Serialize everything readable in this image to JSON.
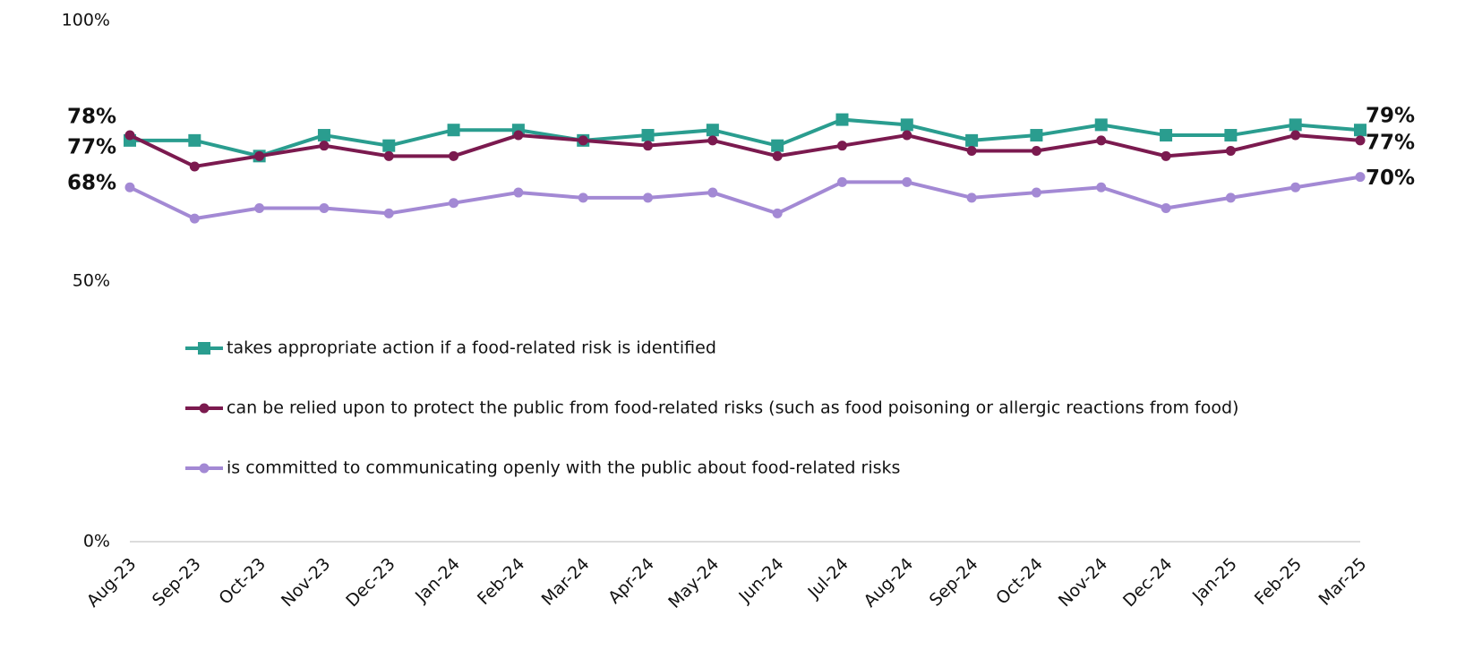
{
  "chart_data": {
    "type": "line",
    "categories": [
      "Aug-23",
      "Sep-23",
      "Oct-23",
      "Nov-23",
      "Dec-23",
      "Jan-24",
      "Feb-24",
      "Mar-24",
      "Apr-24",
      "May-24",
      "Jun-24",
      "Jul-24",
      "Aug-24",
      "Sep-24",
      "Oct-24",
      "Nov-24",
      "Dec-24",
      "Jan-25",
      "Feb-25",
      "Mar-25"
    ],
    "series": [
      {
        "name": "takes appropriate action if a food-related risk is identified",
        "color": "#2a9d8f",
        "marker": "square",
        "values": [
          77,
          77,
          74,
          78,
          76,
          79,
          79,
          77,
          78,
          79,
          76,
          81,
          80,
          77,
          78,
          80,
          78,
          78,
          80,
          79
        ],
        "value_labels": [
          "77%",
          null,
          null,
          null,
          null,
          null,
          null,
          null,
          null,
          null,
          null,
          null,
          null,
          null,
          null,
          null,
          null,
          null,
          null,
          "79%"
        ]
      },
      {
        "name": "can be relied upon to protect the public from food-related risks (such as food poisoning or allergic reactions from food)",
        "color": "#7b1a4f",
        "marker": "circle",
        "values": [
          78,
          72,
          74,
          76,
          74,
          74,
          78,
          77,
          76,
          77,
          74,
          76,
          78,
          75,
          75,
          77,
          74,
          75,
          78,
          77
        ],
        "value_labels": [
          "78%",
          null,
          null,
          null,
          null,
          null,
          null,
          null,
          null,
          null,
          null,
          null,
          null,
          null,
          null,
          null,
          null,
          null,
          null,
          "77%"
        ]
      },
      {
        "name": "is committed to communicating openly with the public about food-related risks",
        "color": "#a389d4",
        "marker": "circle",
        "values": [
          68,
          62,
          64,
          64,
          63,
          65,
          67,
          66,
          66,
          67,
          63,
          69,
          69,
          66,
          67,
          68,
          64,
          66,
          68,
          70
        ],
        "value_labels": [
          "68%",
          null,
          null,
          null,
          null,
          null,
          null,
          null,
          null,
          null,
          null,
          null,
          null,
          null,
          null,
          null,
          null,
          null,
          null,
          "70%"
        ]
      }
    ],
    "ylim": [
      0,
      100
    ],
    "yticks": [
      {
        "value": 0,
        "label": "0%"
      },
      {
        "value": 50,
        "label": "50%"
      },
      {
        "value": 100,
        "label": "100%"
      }
    ],
    "grid": false
  }
}
